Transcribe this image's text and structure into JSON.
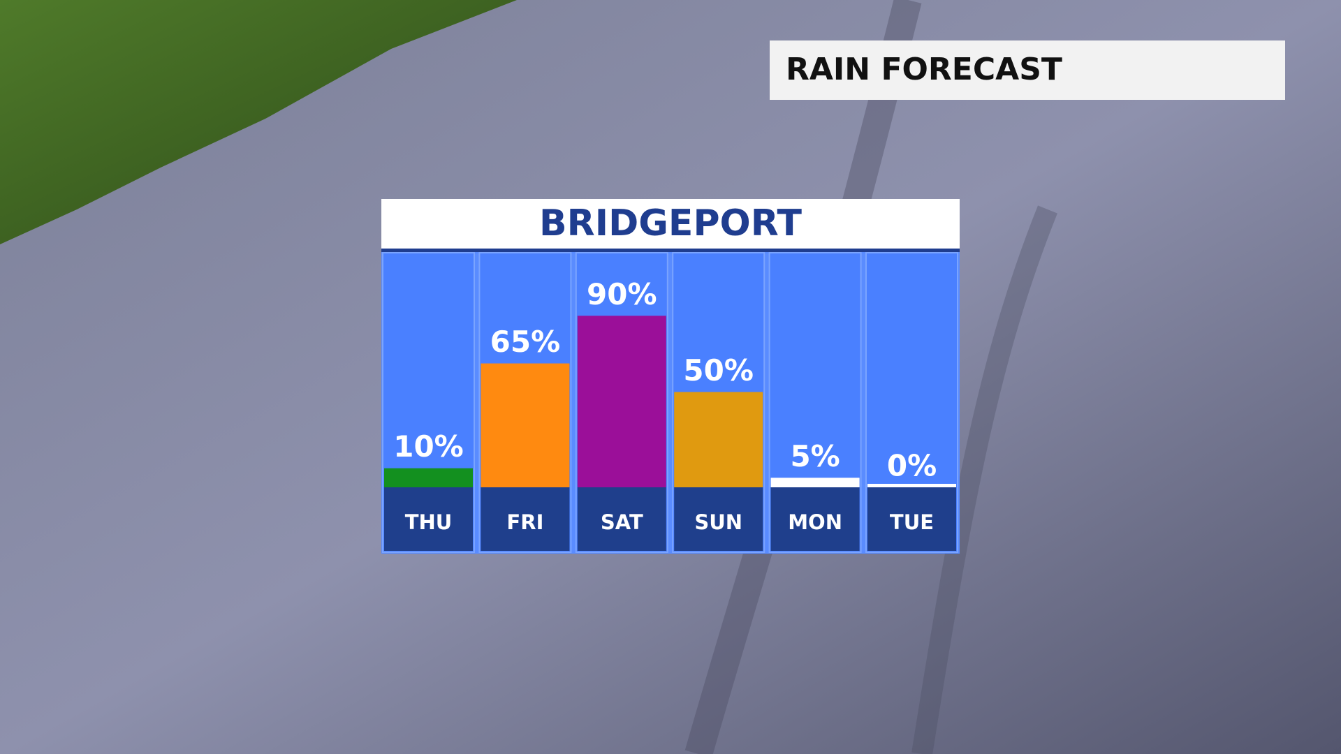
{
  "header": {
    "title": "RAIN FORECAST"
  },
  "chart_data": {
    "type": "bar",
    "title": "BRIDGEPORT",
    "categories": [
      "THU",
      "FRI",
      "SAT",
      "SUN",
      "MON",
      "TUE"
    ],
    "values": [
      10,
      65,
      90,
      50,
      5,
      0
    ],
    "value_labels": [
      "10%",
      "65%",
      "90%",
      "50%",
      "5%",
      "0%"
    ],
    "colors": [
      "#13901f",
      "#ff8a10",
      "#9b0f99",
      "#e09a10",
      "#ffffff",
      "#ffffff"
    ]
  }
}
